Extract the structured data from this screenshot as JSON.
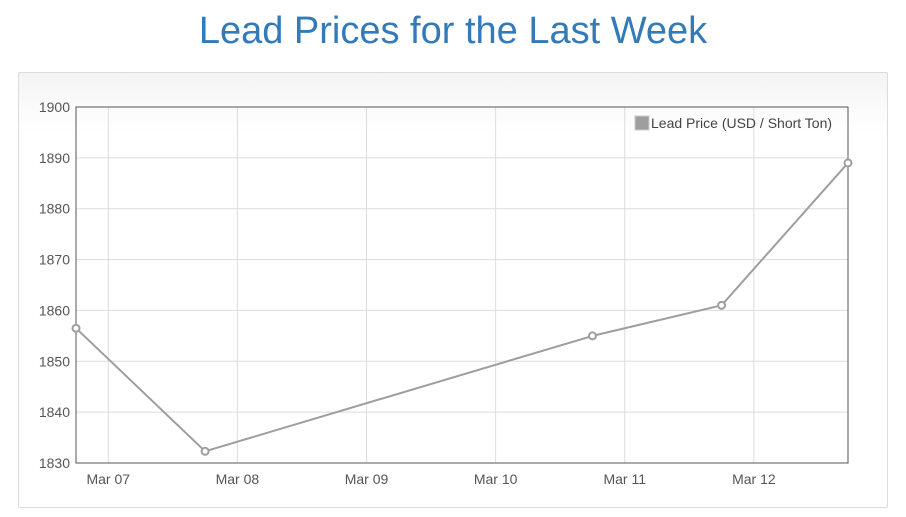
{
  "page": {
    "title": "Lead Prices for the Last Week"
  },
  "colors": {
    "title": "#337ab7",
    "series_line": "#9e9e9e",
    "grid": "#dddddd",
    "axis": "#555555"
  },
  "chart_data": {
    "type": "line",
    "title": "",
    "xlabel": "",
    "ylabel": "",
    "ylim": [
      1830,
      1900
    ],
    "yticks": [
      1830,
      1840,
      1850,
      1860,
      1870,
      1880,
      1890,
      1900
    ],
    "xlim": [
      "Mar 06 18:00",
      "Mar 12 17:30"
    ],
    "xticks": [
      {
        "label": "Mar 07",
        "date": "Mar 07"
      },
      {
        "label": "Mar 08",
        "date": "Mar 08"
      },
      {
        "label": "Mar 09",
        "date": "Mar 09"
      },
      {
        "label": "Mar 10",
        "date": "Mar 10"
      },
      {
        "label": "Mar 11",
        "date": "Mar 11"
      },
      {
        "label": "Mar 12",
        "date": "Mar 12"
      }
    ],
    "grid": true,
    "legend_position": "top-right",
    "series": [
      {
        "name": "Lead Price (USD / Short Ton)",
        "color": "#9e9e9e",
        "points": [
          {
            "x": "Mar 06 18:00",
            "y": 1856.5
          },
          {
            "x": "Mar 07 18:00",
            "y": 1832.3
          },
          {
            "x": "Mar 10 18:00",
            "y": 1855.0
          },
          {
            "x": "Mar 11 18:00",
            "y": 1861.0
          },
          {
            "x": "Mar 12 17:30",
            "y": 1889.0
          }
        ]
      }
    ]
  }
}
